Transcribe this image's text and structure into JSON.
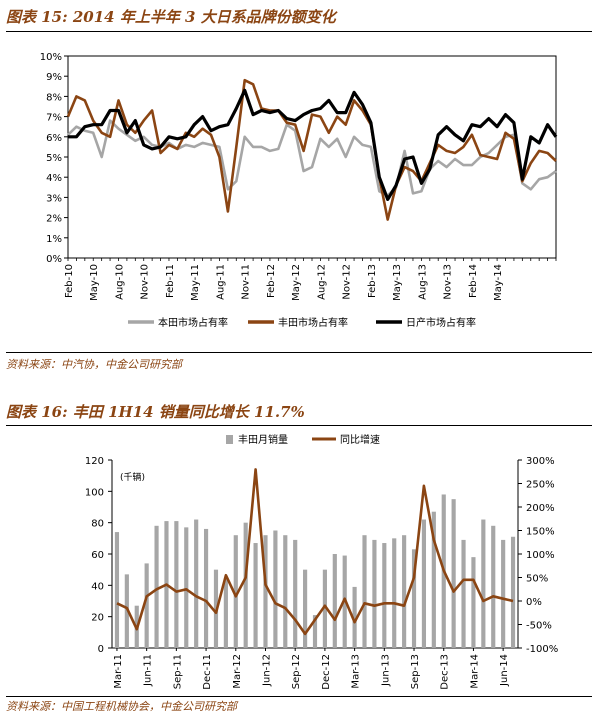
{
  "figures": [
    {
      "title": "图表 15: 2014 年上半年 3 大日系品牌份额变化",
      "source": "资料来源：中汽协，中金公司研究部"
    },
    {
      "title": "图表 16: 丰田 1H14 销量同比增长 11.7%",
      "source": "资料来源：中国工程机械协会，中金公司研究部"
    }
  ],
  "colors": {
    "honda": "#A6A6A6",
    "toyota": "#8B4513",
    "nissan": "#000000",
    "bar": "#A6A6A6",
    "title": "#8B4513"
  },
  "chart_data": [
    {
      "type": "line",
      "title": "图表 15: 2014 年上半年 3 大日系品牌份额变化",
      "x_tick_labels": [
        "Feb-10",
        "May-10",
        "Aug-10",
        "Nov-10",
        "Feb-11",
        "May-11",
        "Aug-11",
        "Nov-11",
        "Feb-12",
        "May-12",
        "Aug-12",
        "Nov-12",
        "Feb-13",
        "May-13",
        "Aug-13",
        "Nov-13",
        "Feb-14",
        "May-14"
      ],
      "x_start": "Feb-10",
      "x_end": "May-14",
      "y_ticks": [
        "0%",
        "1%",
        "2%",
        "3%",
        "4%",
        "5%",
        "6%",
        "7%",
        "8%",
        "9%",
        "10%"
      ],
      "ylim": [
        0,
        10
      ],
      "unit": "%",
      "legend_position": "bottom",
      "series": [
        {
          "name": "本田市场占有率",
          "color": "#A6A6A6",
          "values": [
            6.1,
            6.5,
            6.3,
            6.2,
            5.0,
            6.8,
            6.4,
            6.1,
            5.8,
            6.0,
            5.6,
            5.5,
            5.7,
            5.4,
            5.6,
            5.5,
            5.7,
            5.6,
            5.5,
            3.4,
            3.8,
            6.0,
            5.5,
            5.5,
            5.3,
            5.4,
            6.6,
            6.3,
            4.3,
            4.5,
            5.9,
            5.5,
            5.9,
            5.0,
            6.0,
            5.6,
            5.5,
            3.3,
            3.1,
            3.5,
            5.3,
            3.2,
            3.3,
            4.4,
            4.8,
            4.5,
            4.9,
            4.6,
            4.6,
            5.0,
            5.2,
            5.6,
            6.0,
            6.1,
            3.7,
            3.4,
            3.9,
            4.0,
            4.3
          ]
        },
        {
          "name": "丰田市场占有率",
          "color": "#8B4513",
          "values": [
            7.0,
            8.0,
            7.8,
            6.8,
            6.2,
            6.0,
            7.8,
            6.6,
            6.2,
            6.8,
            7.3,
            5.2,
            5.6,
            5.4,
            6.2,
            6.0,
            6.4,
            6.1,
            5.0,
            2.3,
            5.5,
            8.8,
            8.6,
            7.4,
            7.3,
            7.3,
            6.7,
            6.6,
            5.3,
            7.1,
            7.0,
            6.2,
            7.0,
            6.6,
            7.8,
            7.3,
            6.6,
            4.0,
            1.9,
            3.6,
            4.5,
            4.3,
            3.8,
            4.7,
            5.6,
            5.3,
            5.2,
            5.5,
            6.1,
            5.1,
            5.0,
            4.9,
            6.2,
            5.9,
            3.8,
            4.7,
            5.3,
            5.2,
            4.8
          ]
        },
        {
          "name": "日产市场占有率",
          "color": "#000000",
          "values": [
            6.0,
            6.0,
            6.5,
            6.6,
            6.6,
            7.3,
            7.3,
            6.2,
            6.8,
            5.6,
            5.4,
            5.5,
            6.0,
            5.9,
            6.0,
            6.6,
            7.0,
            6.3,
            6.5,
            6.6,
            7.4,
            8.3,
            7.1,
            7.3,
            7.2,
            7.3,
            6.9,
            6.8,
            7.1,
            7.3,
            7.4,
            7.8,
            7.2,
            7.2,
            8.2,
            7.6,
            6.7,
            4.0,
            2.9,
            3.6,
            4.9,
            5.0,
            3.7,
            4.4,
            6.1,
            6.5,
            6.1,
            5.8,
            6.6,
            6.5,
            6.9,
            6.5,
            7.1,
            6.7,
            3.9,
            6.0,
            5.7,
            6.6,
            6.0
          ]
        }
      ]
    },
    {
      "type": "bar+line",
      "title": "图表 16: 丰田 1H14 销量同比增长 11.7%",
      "x_tick_labels": [
        "Mar-11",
        "Jun-11",
        "Sep-11",
        "Dec-11",
        "Mar-12",
        "Jun-12",
        "Sep-12",
        "Dec-12",
        "Mar-13",
        "Jun-13",
        "Sep-13",
        "Dec-13",
        "Mar-14",
        "Jun-14"
      ],
      "x_start": "Mar-11",
      "x_end": "Jun-14",
      "unit_label": "(千辆)",
      "left_axis": {
        "ticks": [
          "0",
          "20",
          "40",
          "60",
          "80",
          "100",
          "120"
        ],
        "ylim": [
          0,
          120
        ]
      },
      "right_axis": {
        "ticks": [
          "-100%",
          "-50%",
          "0%",
          "50%",
          "100%",
          "150%",
          "200%",
          "250%",
          "300%"
        ],
        "ylim": [
          -100,
          300
        ]
      },
      "legend_position": "top",
      "series": [
        {
          "name": "丰田月销量",
          "type": "bar",
          "axis": "left",
          "color": "#A6A6A6",
          "values": [
            74,
            47,
            27,
            54,
            78,
            81,
            81,
            77,
            82,
            76,
            50,
            44,
            72,
            80,
            67,
            72,
            75,
            72,
            69,
            50,
            21,
            50,
            60,
            59,
            39,
            72,
            69,
            67,
            70,
            72,
            63,
            82,
            87,
            98,
            95,
            69,
            58,
            82,
            78,
            69,
            71
          ]
        },
        {
          "name": "同比增速",
          "type": "line",
          "axis": "right",
          "color": "#8B4513",
          "values": [
            -5,
            -15,
            -60,
            10,
            25,
            35,
            20,
            25,
            10,
            0,
            -25,
            55,
            10,
            50,
            280,
            35,
            -5,
            -15,
            -40,
            -70,
            -40,
            -10,
            -40,
            5,
            -45,
            -5,
            -10,
            -5,
            -5,
            -10,
            50,
            245,
            130,
            65,
            20,
            45,
            45,
            0,
            10,
            5,
            0
          ]
        }
      ]
    }
  ]
}
